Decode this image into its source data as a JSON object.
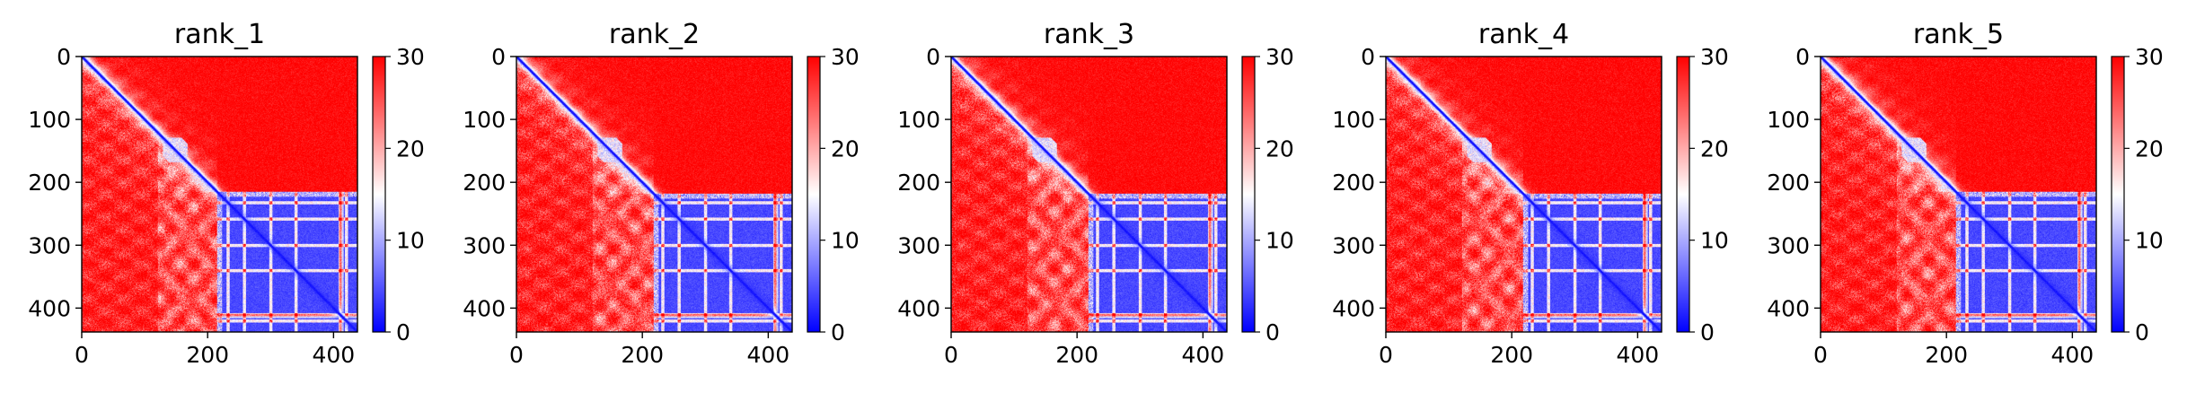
{
  "figure": {
    "colormap": {
      "name": "bwr",
      "low": "#0000ff",
      "mid": "#ffffff",
      "high": "#ff0000",
      "vmin": 0,
      "vmax": 30
    }
  },
  "chart_data": [
    {
      "type": "heatmap",
      "title": "rank_1",
      "xlabel": "",
      "ylabel": "",
      "size": 438,
      "xlim": [
        0,
        438
      ],
      "ylim": [
        438,
        0
      ],
      "x_ticks": [
        0,
        200,
        400
      ],
      "x_tick_labels": [
        "0",
        "200",
        "400"
      ],
      "y_ticks": [
        0,
        100,
        200,
        300,
        400
      ],
      "y_tick_labels": [
        "0",
        "100",
        "200",
        "300",
        "400"
      ],
      "colorbar_ticks": [
        0,
        10,
        20,
        30
      ],
      "colorbar_tick_labels": [
        "0",
        "10",
        "20",
        "30"
      ],
      "domain_split": 215,
      "description": "PAE matrix: low diagonal; upper-left region near 30 (red); lower-right block 215-438 low (blue) with lighter bands"
    },
    {
      "type": "heatmap",
      "title": "rank_2",
      "xlabel": "",
      "ylabel": "",
      "size": 438,
      "xlim": [
        0,
        438
      ],
      "ylim": [
        438,
        0
      ],
      "x_ticks": [
        0,
        200,
        400
      ],
      "x_tick_labels": [
        "0",
        "200",
        "400"
      ],
      "y_ticks": [
        0,
        100,
        200,
        300,
        400
      ],
      "y_tick_labels": [
        "0",
        "100",
        "200",
        "300",
        "400"
      ],
      "colorbar_ticks": [
        0,
        10,
        20,
        30
      ],
      "colorbar_tick_labels": [
        "0",
        "10",
        "20",
        "30"
      ],
      "domain_split": 218
    },
    {
      "type": "heatmap",
      "title": "rank_3",
      "xlabel": "",
      "ylabel": "",
      "size": 438,
      "xlim": [
        0,
        438
      ],
      "ylim": [
        438,
        0
      ],
      "x_ticks": [
        0,
        200,
        400
      ],
      "x_tick_labels": [
        "0",
        "200",
        "400"
      ],
      "y_ticks": [
        0,
        100,
        200,
        300,
        400
      ],
      "y_tick_labels": [
        "0",
        "100",
        "200",
        "300",
        "400"
      ],
      "colorbar_ticks": [
        0,
        10,
        20,
        30
      ],
      "colorbar_tick_labels": [
        "0",
        "10",
        "20",
        "30"
      ],
      "domain_split": 218
    },
    {
      "type": "heatmap",
      "title": "rank_4",
      "xlabel": "",
      "ylabel": "",
      "size": 438,
      "xlim": [
        0,
        438
      ],
      "ylim": [
        438,
        0
      ],
      "x_ticks": [
        0,
        200,
        400
      ],
      "x_tick_labels": [
        "0",
        "200",
        "400"
      ],
      "y_ticks": [
        0,
        100,
        200,
        300,
        400
      ],
      "y_tick_labels": [
        "0",
        "100",
        "200",
        "300",
        "400"
      ],
      "colorbar_ticks": [
        0,
        10,
        20,
        30
      ],
      "colorbar_tick_labels": [
        "0",
        "10",
        "20",
        "30"
      ],
      "domain_split": 218
    },
    {
      "type": "heatmap",
      "title": "rank_5",
      "xlabel": "",
      "ylabel": "",
      "size": 438,
      "xlim": [
        0,
        438
      ],
      "ylim": [
        438,
        0
      ],
      "x_ticks": [
        0,
        200,
        400
      ],
      "x_tick_labels": [
        "0",
        "200",
        "400"
      ],
      "y_ticks": [
        0,
        100,
        200,
        300,
        400
      ],
      "y_tick_labels": [
        "0",
        "100",
        "200",
        "300",
        "400"
      ],
      "colorbar_ticks": [
        0,
        10,
        20,
        30
      ],
      "colorbar_tick_labels": [
        "0",
        "10",
        "20",
        "30"
      ],
      "domain_split": 215
    }
  ]
}
